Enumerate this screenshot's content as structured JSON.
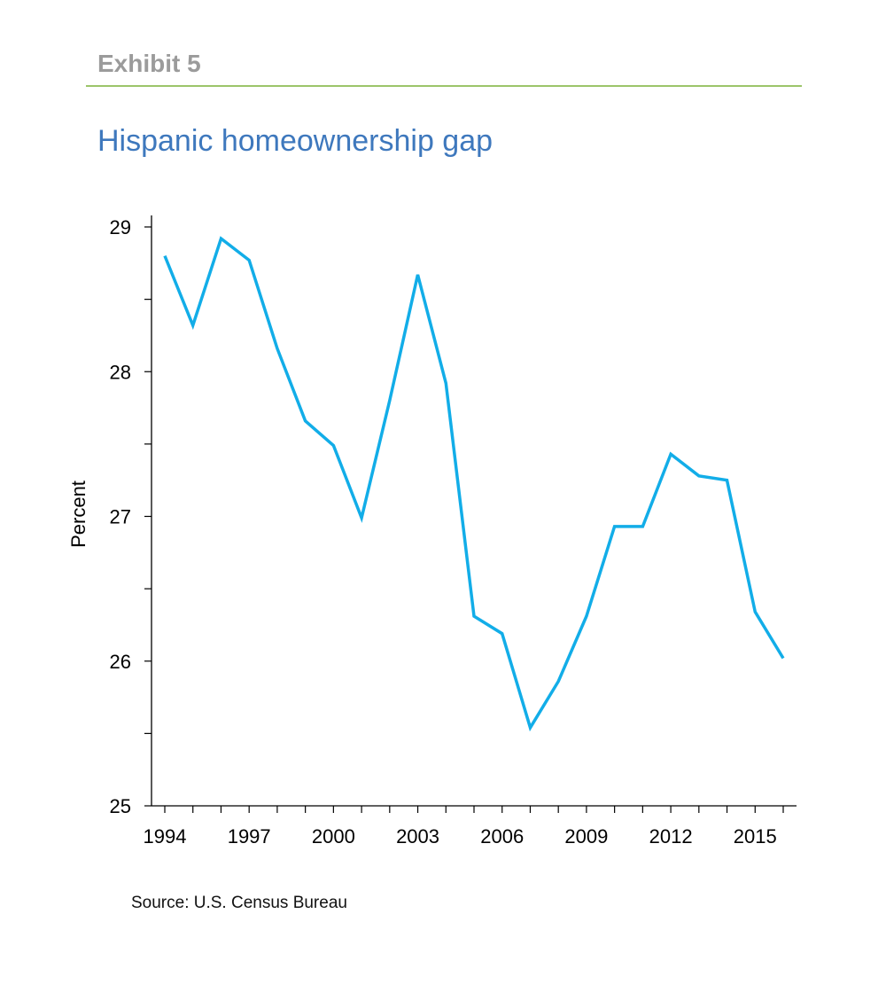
{
  "header": {
    "exhibit_label": "Exhibit 5",
    "accent_color": "#9cc56a"
  },
  "chart_data": {
    "type": "line",
    "title": "Hispanic homeownership gap",
    "xlabel": "",
    "ylabel": "Percent",
    "x": [
      1994,
      1995,
      1996,
      1997,
      1998,
      1999,
      2000,
      2001,
      2002,
      2003,
      2004,
      2005,
      2006,
      2007,
      2008,
      2009,
      2010,
      2011,
      2012,
      2013,
      2014,
      2015,
      2016
    ],
    "series": [
      {
        "name": "Hispanic homeownership gap",
        "color": "#12ade8",
        "values": [
          28.8,
          28.32,
          28.92,
          28.77,
          28.16,
          27.66,
          27.49,
          26.99,
          27.8,
          28.67,
          27.92,
          26.31,
          26.19,
          25.54,
          25.86,
          26.31,
          26.93,
          26.93,
          27.43,
          27.28,
          27.25,
          26.34,
          26.02
        ]
      }
    ],
    "xlim": [
      1994,
      2016
    ],
    "ylim": [
      25,
      29
    ],
    "xticks": [
      1994,
      1995,
      1996,
      1997,
      1998,
      1999,
      2000,
      2001,
      2002,
      2003,
      2004,
      2005,
      2006,
      2007,
      2008,
      2009,
      2010,
      2011,
      2012,
      2013,
      2014,
      2015,
      2016
    ],
    "xtick_labels": [
      "1994",
      "1997",
      "2000",
      "2003",
      "2006",
      "2009",
      "2012",
      "2015"
    ],
    "xtick_label_values": [
      1994,
      1997,
      2000,
      2003,
      2006,
      2009,
      2012,
      2015
    ],
    "yticks": [
      25,
      25.5,
      26,
      26.5,
      27,
      27.5,
      28,
      28.5,
      29
    ],
    "ytick_labels": [
      "25",
      "26",
      "27",
      "28",
      "29"
    ],
    "ytick_label_values": [
      25,
      26,
      27,
      28,
      29
    ],
    "grid": false,
    "legend": "none"
  },
  "source": "Source: U.S. Census Bureau"
}
